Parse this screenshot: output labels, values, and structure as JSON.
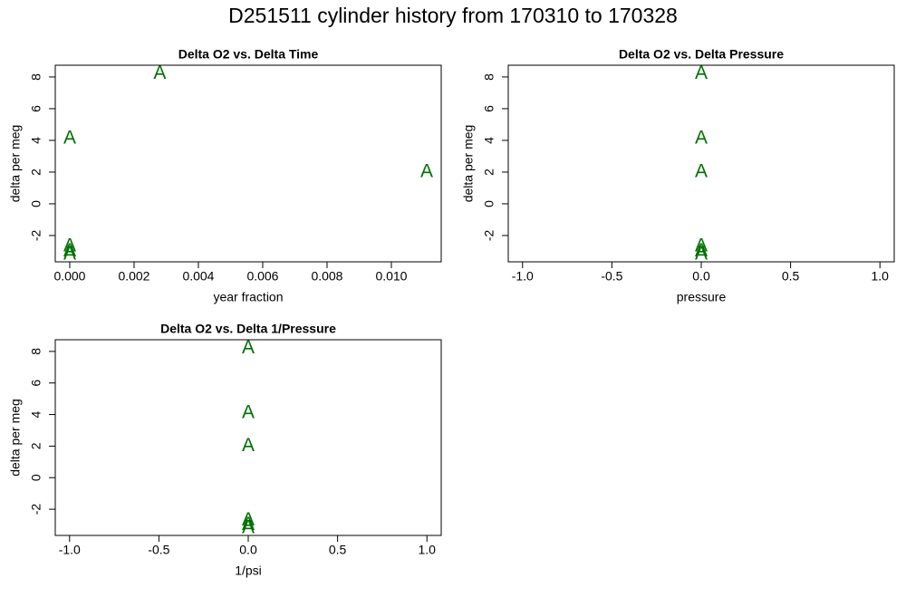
{
  "title": "D251511   cylinder history from  170310  to  170328",
  "chart_data": [
    {
      "type": "scatter",
      "title": "Delta O2 vs. Delta Time",
      "xlabel": "year fraction",
      "ylabel": "delta per meg",
      "marker": "A",
      "color": "#007000",
      "x": [
        0.0028,
        0,
        0.0111,
        0,
        0,
        0
      ],
      "y": [
        8.2,
        4.1,
        2.0,
        -2.7,
        -3.0,
        -3.2
      ],
      "xlim": [
        -0.00045,
        0.01155
      ],
      "ylim": [
        -3.66,
        8.74
      ],
      "xticks": [
        {
          "value": 0,
          "label": "0.000"
        },
        {
          "value": 0.002,
          "label": "0.002"
        },
        {
          "value": 0.004,
          "label": "0.004"
        },
        {
          "value": 0.006,
          "label": "0.006"
        },
        {
          "value": 0.008,
          "label": "0.008"
        },
        {
          "value": 0.01,
          "label": "0.010"
        }
      ],
      "yticks": [
        -2,
        0,
        2,
        4,
        6,
        8
      ]
    },
    {
      "type": "scatter",
      "title": "Delta O2 vs. Delta Pressure",
      "xlabel": "pressure",
      "ylabel": "delta per meg",
      "marker": "A",
      "color": "#007000",
      "x": [
        0,
        0,
        0,
        0,
        0,
        0
      ],
      "y": [
        8.2,
        4.1,
        2.0,
        -2.7,
        -3.0,
        -3.2
      ],
      "xlim": [
        -1.08,
        1.08
      ],
      "ylim": [
        -3.66,
        8.74
      ],
      "xticks": [
        {
          "value": -1,
          "label": "-1.0"
        },
        {
          "value": -0.5,
          "label": "-0.5"
        },
        {
          "value": 0,
          "label": "0.0"
        },
        {
          "value": 0.5,
          "label": "0.5"
        },
        {
          "value": 1,
          "label": "1.0"
        }
      ],
      "yticks": [
        -2,
        0,
        2,
        4,
        6,
        8
      ]
    },
    {
      "type": "scatter",
      "title": "Delta O2 vs. Delta 1/Pressure",
      "xlabel": "1/psi",
      "ylabel": "delta per meg",
      "marker": "A",
      "color": "#007000",
      "x": [
        0,
        0,
        0,
        0,
        0,
        0
      ],
      "y": [
        8.2,
        4.1,
        2.0,
        -2.7,
        -3.0,
        -3.2
      ],
      "xlim": [
        -1.08,
        1.08
      ],
      "ylim": [
        -3.66,
        8.74
      ],
      "xticks": [
        {
          "value": -1,
          "label": "-1.0"
        },
        {
          "value": -0.5,
          "label": "-0.5"
        },
        {
          "value": 0,
          "label": "0.0"
        },
        {
          "value": 0.5,
          "label": "0.5"
        },
        {
          "value": 1,
          "label": "1.0"
        }
      ],
      "yticks": [
        -2,
        0,
        2,
        4,
        6,
        8
      ]
    }
  ]
}
